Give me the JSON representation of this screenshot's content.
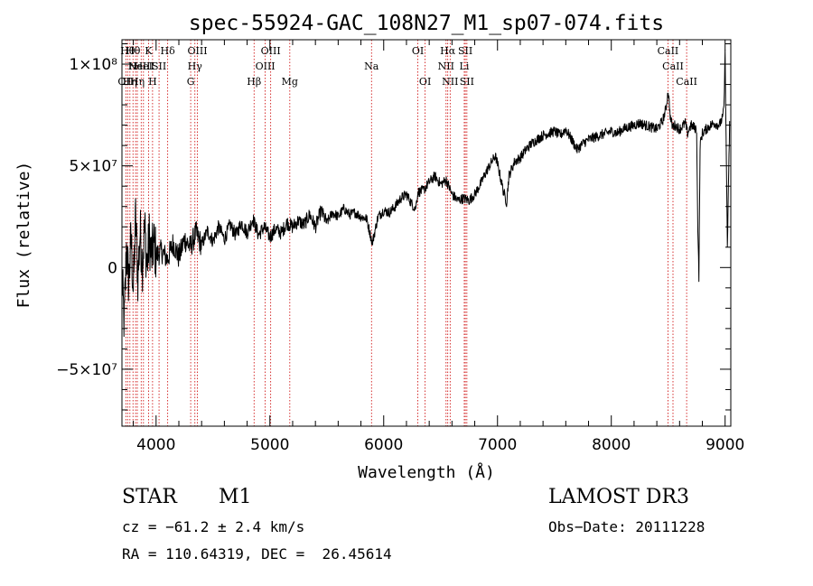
{
  "chart_data": {
    "type": "line",
    "title": "spec-55924-GAC_108N27_M1_sp07-074.fits",
    "xlabel": "Wavelength (Å)",
    "ylabel": "Flux (relative)",
    "xlim": [
      3700,
      9050
    ],
    "ylim": [
      -78000000,
      112000000
    ],
    "x_ticks": [
      {
        "value": 4000,
        "label": "4000"
      },
      {
        "value": 5000,
        "label": "5000"
      },
      {
        "value": 6000,
        "label": "6000"
      },
      {
        "value": 7000,
        "label": "7000"
      },
      {
        "value": 8000,
        "label": "8000"
      },
      {
        "value": 9000,
        "label": "9000"
      }
    ],
    "y_ticks": [
      {
        "value": 100000000,
        "label": "1×10⁸"
      },
      {
        "value": 50000000,
        "label": "5×10⁷"
      },
      {
        "value": 0,
        "label": "0"
      },
      {
        "value": -50000000,
        "label": "−5×10⁷"
      }
    ],
    "series": [
      {
        "name": "flux",
        "color": "#000000",
        "x": [
          3700,
          3720,
          3740,
          3760,
          3780,
          3800,
          3820,
          3840,
          3860,
          3880,
          3900,
          3920,
          3940,
          3960,
          3980,
          4000,
          4050,
          4100,
          4150,
          4200,
          4250,
          4300,
          4350,
          4400,
          4450,
          4500,
          4550,
          4600,
          4650,
          4700,
          4750,
          4800,
          4850,
          4900,
          4950,
          5000,
          5050,
          5100,
          5150,
          5200,
          5250,
          5300,
          5350,
          5400,
          5450,
          5500,
          5550,
          5600,
          5650,
          5700,
          5750,
          5800,
          5850,
          5900,
          5950,
          6000,
          6050,
          6100,
          6150,
          6200,
          6250,
          6280,
          6300,
          6350,
          6400,
          6450,
          6500,
          6550,
          6600,
          6650,
          6700,
          6750,
          6800,
          6850,
          6900,
          6950,
          6980,
          7000,
          7050,
          7080,
          7100,
          7150,
          7200,
          7250,
          7300,
          7350,
          7400,
          7450,
          7500,
          7550,
          7600,
          7650,
          7700,
          7750,
          7800,
          7850,
          7900,
          7950,
          8000,
          8050,
          8100,
          8150,
          8200,
          8250,
          8300,
          8350,
          8400,
          8450,
          8480,
          8500,
          8520,
          8540,
          8560,
          8600,
          8650,
          8670,
          8700,
          8750,
          8760,
          8770,
          8780,
          8800,
          8850,
          8900,
          8950,
          8980,
          8990,
          9000,
          9020,
          9040
        ],
        "y": [
          -5000000,
          -28000000,
          10000000,
          -8000000,
          15000000,
          -12000000,
          25000000,
          -5000000,
          18000000,
          2000000,
          20000000,
          0,
          15000000,
          5000000,
          12000000,
          6000000,
          8000000,
          4000000,
          12000000,
          5000000,
          14000000,
          10000000,
          17000000,
          11000000,
          18000000,
          13000000,
          20000000,
          14000000,
          21000000,
          16000000,
          22000000,
          17000000,
          24000000,
          16000000,
          20000000,
          15000000,
          19000000,
          17000000,
          22000000,
          20000000,
          23000000,
          21000000,
          26000000,
          20000000,
          28000000,
          22000000,
          27000000,
          25000000,
          29000000,
          26000000,
          27000000,
          25000000,
          24000000,
          12000000,
          25000000,
          28000000,
          27000000,
          30000000,
          34000000,
          36000000,
          31000000,
          29000000,
          37000000,
          38000000,
          42000000,
          45000000,
          41000000,
          43000000,
          36000000,
          33000000,
          34000000,
          33000000,
          36000000,
          41000000,
          47000000,
          52000000,
          55000000,
          51000000,
          38000000,
          32000000,
          45000000,
          52000000,
          54000000,
          58000000,
          61000000,
          63000000,
          65000000,
          66000000,
          67000000,
          65000000,
          68000000,
          63000000,
          58000000,
          61000000,
          63000000,
          64000000,
          65000000,
          66000000,
          67000000,
          66000000,
          68000000,
          69000000,
          70000000,
          71000000,
          70000000,
          69000000,
          68000000,
          72000000,
          78000000,
          87000000,
          73000000,
          69000000,
          70000000,
          68000000,
          71000000,
          66000000,
          70000000,
          68000000,
          20000000,
          -5000000,
          60000000,
          66000000,
          69000000,
          71000000,
          70000000,
          74000000,
          79000000,
          105000000,
          10000000,
          72000000
        ]
      }
    ],
    "lines": [
      {
        "x": 3734,
        "label": "OII",
        "row": 2
      },
      {
        "x": 3750,
        "label": "Hθ",
        "row": 0
      },
      {
        "x": 3770,
        "label": "Hη",
        "row": 2
      },
      {
        "x": 3797,
        "label": "Hθ",
        "row": 0
      },
      {
        "x": 3820,
        "label": "He",
        "row": 1
      },
      {
        "x": 3835,
        "label": "Hη",
        "row": 2
      },
      {
        "x": 3869,
        "label": "NeIII",
        "row": 1
      },
      {
        "x": 3889,
        "label": "HeI",
        "row": 1
      },
      {
        "x": 3934,
        "label": "K",
        "row": 0
      },
      {
        "x": 3969,
        "label": "H",
        "row": 2
      },
      {
        "x": 4026,
        "label": "SII",
        "row": 1
      },
      {
        "x": 4102,
        "label": "Hδ",
        "row": 0
      },
      {
        "x": 4304,
        "label": "G",
        "row": 2
      },
      {
        "x": 4341,
        "label": "Hγ",
        "row": 1
      },
      {
        "x": 4363,
        "label": "OIII",
        "row": 0
      },
      {
        "x": 4861,
        "label": "Hβ",
        "row": 2
      },
      {
        "x": 4959,
        "label": "OIII",
        "row": 1
      },
      {
        "x": 5007,
        "label": "OIII",
        "row": 0
      },
      {
        "x": 5175,
        "label": "Mg",
        "row": 2
      },
      {
        "x": 5893,
        "label": "Na",
        "row": 1
      },
      {
        "x": 6300,
        "label": "OI",
        "row": 0
      },
      {
        "x": 6364,
        "label": "OI",
        "row": 2
      },
      {
        "x": 6548,
        "label": "NII",
        "row": 1
      },
      {
        "x": 6563,
        "label": "Hα",
        "row": 0
      },
      {
        "x": 6584,
        "label": "NII",
        "row": 2
      },
      {
        "x": 6708,
        "label": "Li",
        "row": 1
      },
      {
        "x": 6717,
        "label": "SII",
        "row": 0
      },
      {
        "x": 6731,
        "label": "SII",
        "row": 2
      },
      {
        "x": 8498,
        "label": "CaII",
        "row": 0
      },
      {
        "x": 8542,
        "label": "CaII",
        "row": 1
      },
      {
        "x": 8662,
        "label": "CaII",
        "row": 2
      }
    ]
  },
  "info": {
    "object_class": "STAR",
    "subclass": "M1",
    "survey": "LAMOST DR3",
    "redshift": "cz = −61.2 ± 2.4 km/s",
    "obs_date": "Obs−Date: 20111228",
    "coords": "RA = 110.64319, DEC =  26.45614"
  },
  "colors": {
    "trace": "#000000",
    "line_marker": "#cc0000",
    "axis": "#000000"
  }
}
